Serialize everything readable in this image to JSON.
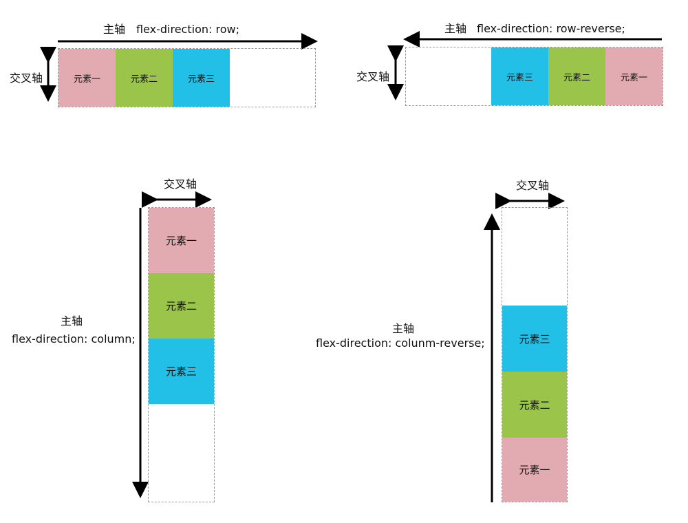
{
  "colors": {
    "item_one": "#e2abb2",
    "item_two": "#9bc44a",
    "item_three": "#22bfe6",
    "axis": "#000000",
    "container_border": "#999999"
  },
  "items": {
    "one": "元素一",
    "two": "元素二",
    "three": "元素三"
  },
  "panels": {
    "row": {
      "main_axis": "主轴",
      "direction": "flex-direction: row;",
      "cross_axis": "交叉轴"
    },
    "row_reverse": {
      "main_axis": "主轴",
      "direction": "flex-direction: row-reverse;",
      "cross_axis": "交叉轴"
    },
    "column": {
      "main_axis": "主轴",
      "direction": "flex-direction: column;",
      "cross_axis": "交叉轴"
    },
    "column_reverse": {
      "main_axis": "主轴",
      "direction": "flex-direction: colunm-reverse;",
      "cross_axis": "交叉轴"
    }
  }
}
